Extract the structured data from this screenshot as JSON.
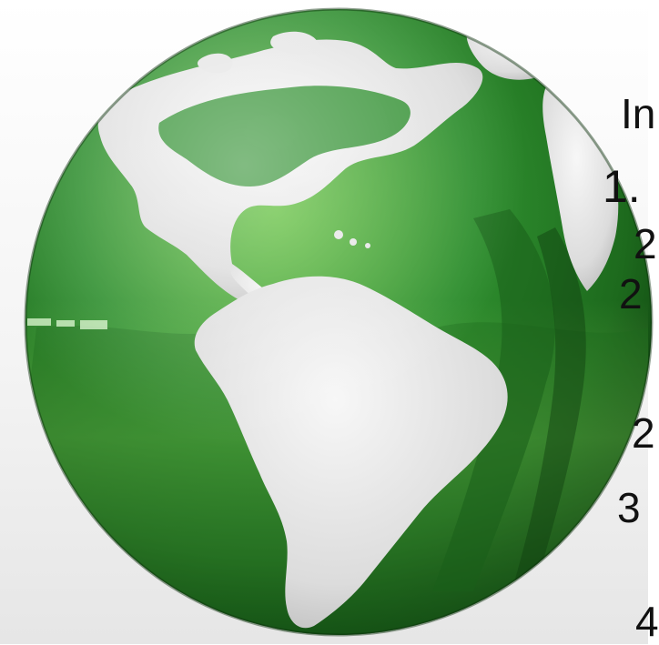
{
  "side_text": {
    "lines": [
      "In",
      "1.",
      "2",
      "2",
      "2",
      "3",
      "4"
    ]
  },
  "globe": {
    "colors": {
      "land": "#e8e8e8",
      "vegetation_dark": "#1f6b1f",
      "vegetation_mid": "#2f8f2f",
      "vegetation_light": "#7ccf4a",
      "background": "#ffffff"
    }
  }
}
